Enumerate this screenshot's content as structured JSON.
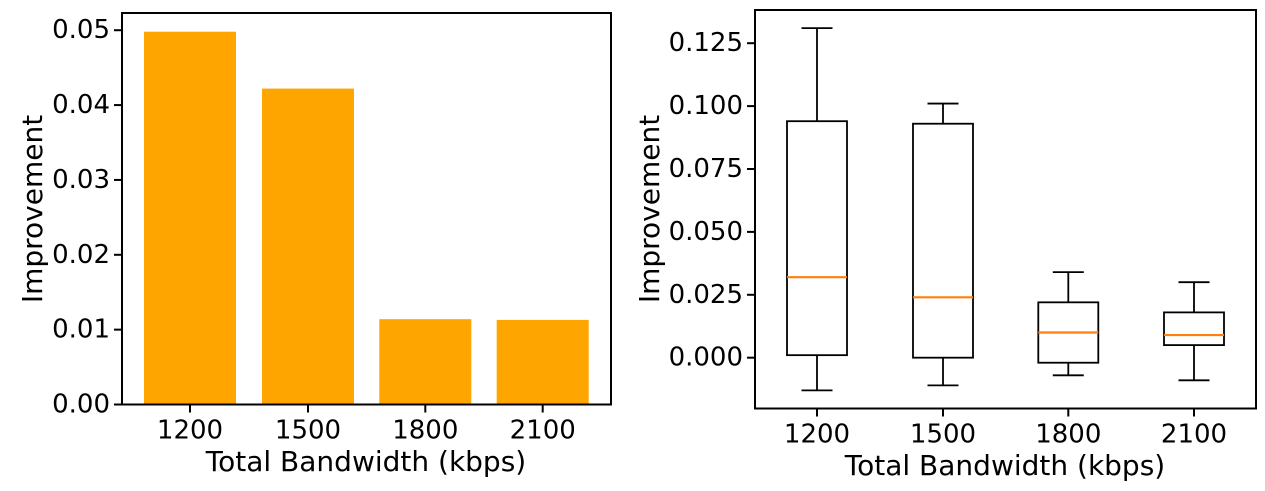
{
  "page": {
    "background": "#ffffff"
  },
  "chart_data": [
    {
      "type": "bar",
      "title": "",
      "xlabel": "Total Bandwidth (kbps)",
      "ylabel": "Improvement",
      "categories": [
        "1200",
        "1500",
        "1800",
        "2100"
      ],
      "values": [
        0.0498,
        0.0422,
        0.0114,
        0.0113
      ],
      "yticks": [
        0.0,
        0.01,
        0.02,
        0.03,
        0.04,
        0.05
      ],
      "ytick_labels": [
        "0.00",
        "0.01",
        "0.02",
        "0.03",
        "0.04",
        "0.05"
      ],
      "ylim": [
        0,
        0.0523
      ],
      "bar_color": "#FFA500",
      "grid": false,
      "legend": null
    },
    {
      "type": "boxplot",
      "title": "",
      "xlabel": "Total Bandwidth (kbps)",
      "ylabel": "Improvement",
      "categories": [
        "1200",
        "1500",
        "1800",
        "2100"
      ],
      "series": [
        {
          "category": "1200",
          "whisker_low": -0.013,
          "q1": 0.001,
          "median": 0.032,
          "q3": 0.094,
          "whisker_high": 0.131
        },
        {
          "category": "1500",
          "whisker_low": -0.011,
          "q1": 0.0,
          "median": 0.024,
          "q3": 0.093,
          "whisker_high": 0.101
        },
        {
          "category": "1800",
          "whisker_low": -0.007,
          "q1": -0.002,
          "median": 0.01,
          "q3": 0.022,
          "whisker_high": 0.034
        },
        {
          "category": "2100",
          "whisker_low": -0.009,
          "q1": 0.005,
          "median": 0.009,
          "q3": 0.018,
          "whisker_high": 0.03
        }
      ],
      "yticks": [
        0.0,
        0.025,
        0.05,
        0.075,
        0.1,
        0.125
      ],
      "ytick_labels": [
        "0.000",
        "0.025",
        "0.050",
        "0.075",
        "0.100",
        "0.125"
      ],
      "ylim": [
        -0.0202,
        0.1382
      ],
      "box_color": "#000000",
      "median_color": "#FF7F0E",
      "grid": false,
      "legend": null
    }
  ]
}
